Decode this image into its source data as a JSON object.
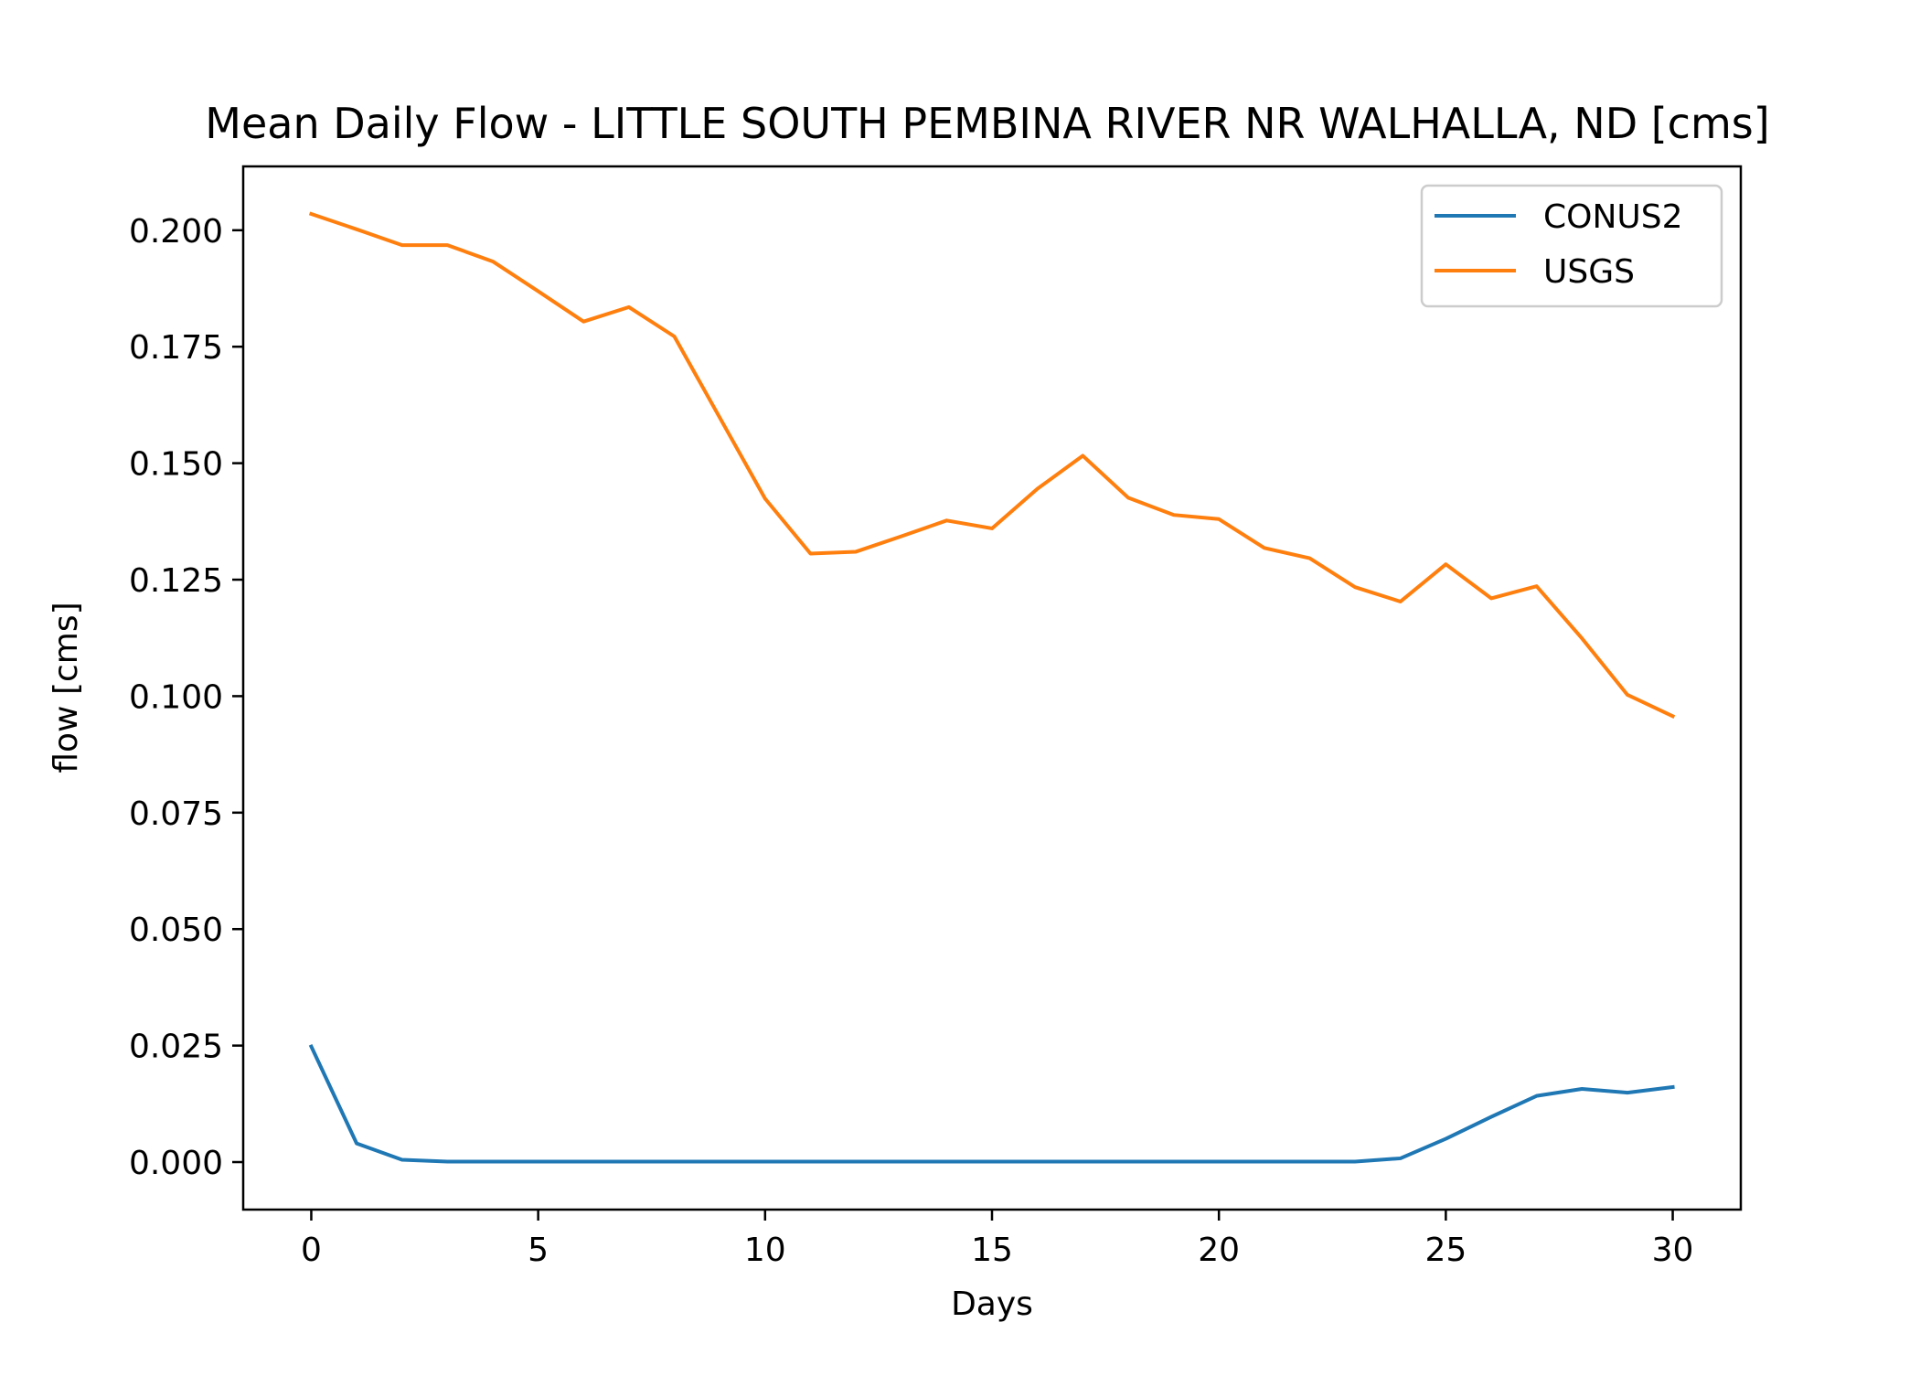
{
  "chart_data": {
    "type": "line",
    "title": "Mean Daily Flow - LITTLE SOUTH PEMBINA RIVER NR WALHALLA, ND [cms]",
    "xlabel": "Days",
    "ylabel": "flow [cms]",
    "xlim": [
      -1.5,
      31.5
    ],
    "ylim": [
      -0.0102,
      0.2137
    ],
    "xticks": [
      0,
      5,
      10,
      15,
      20,
      25,
      30
    ],
    "xtick_labels": [
      "0",
      "5",
      "10",
      "15",
      "20",
      "25",
      "30"
    ],
    "yticks": [
      0.0,
      0.025,
      0.05,
      0.075,
      0.1,
      0.125,
      0.15,
      0.175,
      0.2
    ],
    "ytick_labels": [
      "0.000",
      "0.025",
      "0.050",
      "0.075",
      "0.100",
      "0.125",
      "0.150",
      "0.175",
      "0.200"
    ],
    "grid": false,
    "legend_position": "top-right",
    "x": [
      0,
      1,
      2,
      3,
      4,
      5,
      6,
      7,
      8,
      9,
      10,
      11,
      12,
      13,
      14,
      15,
      16,
      17,
      18,
      19,
      20,
      21,
      22,
      23,
      24,
      25,
      26,
      27,
      28,
      29,
      30
    ],
    "series": [
      {
        "name": "CONUS2",
        "color": "#1f77b4",
        "values": [
          0.0248,
          0.004,
          0.0005,
          0.0001,
          0.0001,
          0.0001,
          0.0001,
          0.0001,
          0.0001,
          0.0001,
          0.0001,
          0.0001,
          0.0001,
          0.0001,
          0.0001,
          0.0001,
          0.0001,
          0.0001,
          0.0001,
          0.0001,
          0.0001,
          0.0001,
          0.0001,
          0.0001,
          0.0008,
          0.005,
          0.0097,
          0.0142,
          0.0157,
          0.0149,
          0.0161
        ]
      },
      {
        "name": "USGS",
        "color": "#ff7f0e",
        "values": [
          0.2035,
          0.2002,
          0.1968,
          0.1968,
          0.1933,
          0.1869,
          0.1804,
          0.1835,
          0.1772,
          0.1598,
          0.1424,
          0.1306,
          0.131,
          0.1343,
          0.1377,
          0.136,
          0.1445,
          0.1516,
          0.1426,
          0.1389,
          0.138,
          0.1318,
          0.1296,
          0.1234,
          0.1203,
          0.1283,
          0.121,
          0.1236,
          0.1124,
          0.1003,
          0.0957
        ]
      }
    ]
  }
}
